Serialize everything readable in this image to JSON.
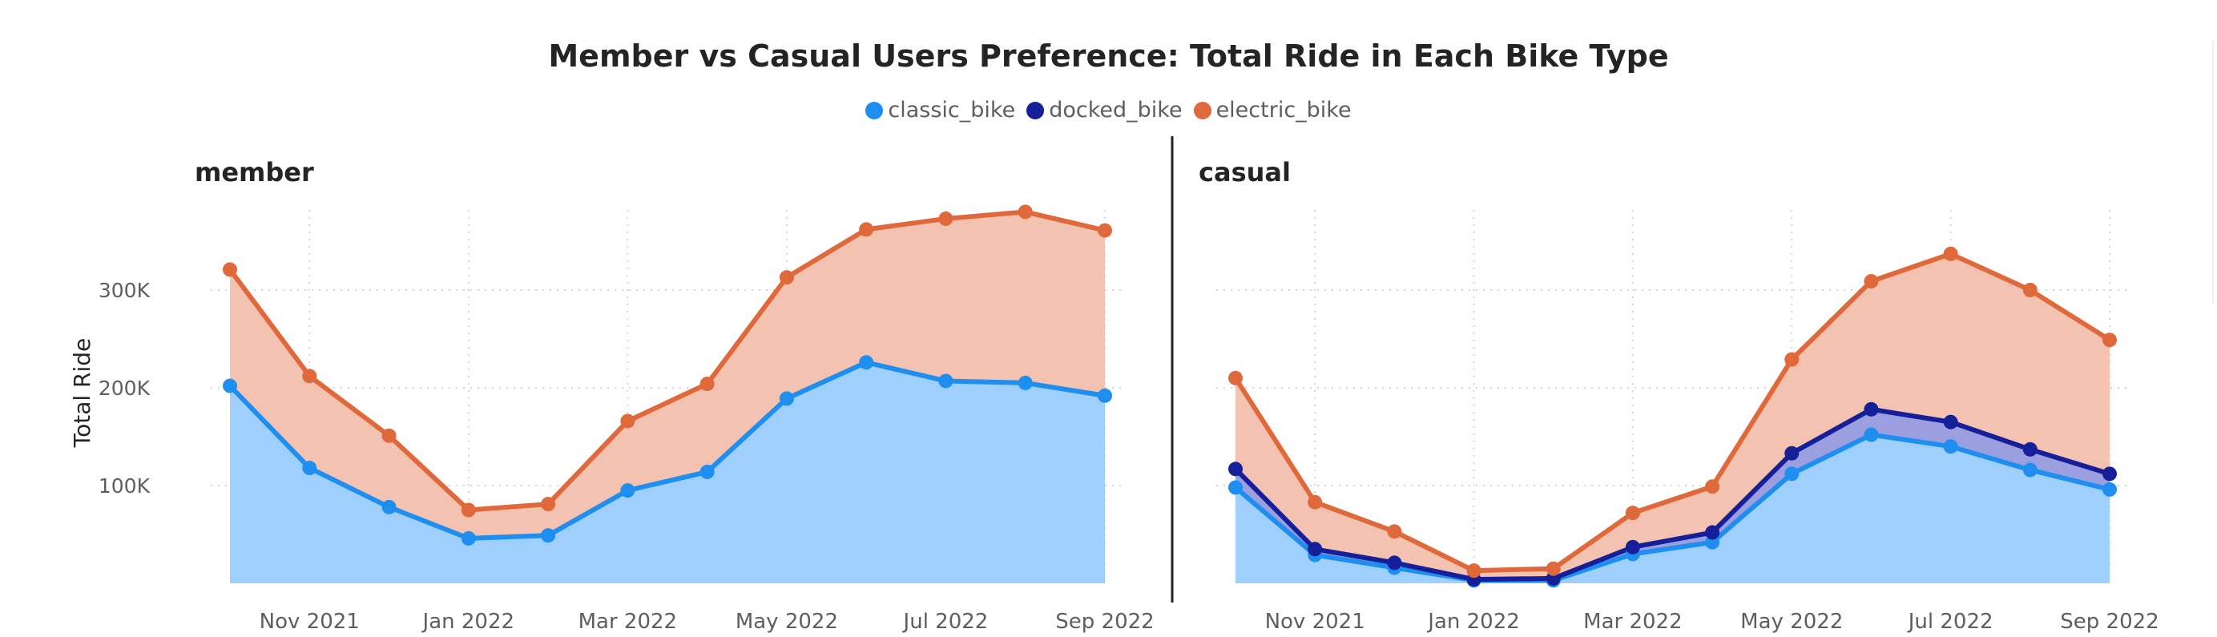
{
  "title": "Member vs Casual Users Preference: Total Ride in Each Bike Type",
  "legend": [
    {
      "name": "classic_bike",
      "color": "#1e8ef0"
    },
    {
      "name": "docked_bike",
      "color": "#161f9a"
    },
    {
      "name": "electric_bike",
      "color": "#e0693b"
    }
  ],
  "chart_data": {
    "type": "area",
    "stacked": true,
    "ylabel": "Total Ride",
    "y_ticks": [
      "100K",
      "200K",
      "300K"
    ],
    "ylim": [
      0,
      380000
    ],
    "x": [
      "Oct 2021",
      "Nov 2021",
      "Dec 2021",
      "Jan 2022",
      "Feb 2022",
      "Mar 2022",
      "Apr 2022",
      "May 2022",
      "Jun 2022",
      "Jul 2022",
      "Aug 2022",
      "Sep 2022"
    ],
    "x_tick_labels": [
      "Nov 2021",
      "Jan 2022",
      "Mar 2022",
      "May 2022",
      "Jul 2022",
      "Sep 2022"
    ],
    "grid": true,
    "legend_position": "top-center",
    "panels": [
      {
        "name": "member",
        "series": [
          {
            "name": "classic_bike",
            "values": [
              202000,
              118000,
              78000,
              46000,
              49000,
              95000,
              114000,
              189000,
              226000,
              207000,
              205000,
              192000
            ]
          },
          {
            "name": "docked_bike",
            "values": [
              0,
              0,
              0,
              0,
              0,
              0,
              0,
              0,
              0,
              0,
              0,
              0
            ]
          },
          {
            "name": "electric_bike",
            "values": [
              119000,
              94000,
              73000,
              29000,
              32000,
              71000,
              90000,
              124000,
              136000,
              166000,
              175000,
              169000
            ]
          }
        ]
      },
      {
        "name": "casual",
        "series": [
          {
            "name": "classic_bike",
            "values": [
              98000,
              29000,
              16000,
              3000,
              3000,
              30000,
              42000,
              112000,
              152000,
              140000,
              116000,
              96000
            ]
          },
          {
            "name": "docked_bike",
            "values": [
              19000,
              6000,
              5000,
              1000,
              2000,
              7000,
              10000,
              21000,
              26000,
              25000,
              21000,
              16000
            ]
          },
          {
            "name": "electric_bike",
            "values": [
              93000,
              48000,
              32000,
              9000,
              10000,
              35000,
              47000,
              96000,
              131000,
              172000,
              163000,
              137000
            ]
          }
        ]
      }
    ]
  }
}
